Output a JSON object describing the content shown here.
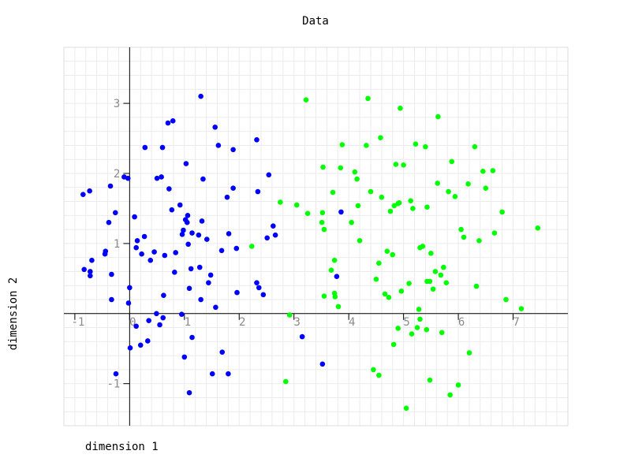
{
  "chart_data": {
    "type": "scatter",
    "title": "Data",
    "xlabel": "dimension 1",
    "ylabel": "dimension 2",
    "xlim": [
      -1.2,
      8.0
    ],
    "ylim": [
      -1.6,
      3.8
    ],
    "grid": true,
    "x_ticks": [
      -1,
      0,
      1,
      2,
      3,
      4,
      5,
      6,
      7
    ],
    "y_ticks": [
      -1,
      1,
      2,
      3
    ],
    "series": [
      {
        "color": "#0000ff",
        "points": [
          [
            -0.85,
            1.7
          ],
          [
            -0.73,
            1.75
          ],
          [
            -0.83,
            0.63
          ],
          [
            -0.72,
            0.6
          ],
          [
            -0.72,
            0.54
          ],
          [
            -0.69,
            0.76
          ],
          [
            -0.45,
            0.85
          ],
          [
            -0.44,
            0.89
          ],
          [
            -0.38,
            1.3
          ],
          [
            -0.35,
            1.82
          ],
          [
            -0.33,
            0.2
          ],
          [
            -0.33,
            0.56
          ],
          [
            -0.26,
            1.44
          ],
          [
            -0.1,
            1.95
          ],
          [
            -0.03,
            1.93
          ],
          [
            -0.02,
            0.15
          ],
          [
            0.0,
            0.37
          ],
          [
            0.01,
            -0.49
          ],
          [
            0.09,
            1.38
          ],
          [
            0.12,
            0.94
          ],
          [
            0.14,
            1.04
          ],
          [
            0.22,
            0.85
          ],
          [
            0.27,
            1.1
          ],
          [
            0.38,
            0.76
          ],
          [
            0.45,
            0.88
          ],
          [
            0.5,
            1.93
          ],
          [
            0.58,
            1.95
          ],
          [
            0.64,
            0.83
          ],
          [
            0.7,
            2.72
          ],
          [
            0.72,
            1.78
          ],
          [
            0.77,
            1.48
          ],
          [
            0.82,
            0.59
          ],
          [
            0.84,
            0.87
          ],
          [
            0.92,
            1.55
          ],
          [
            0.96,
            1.13
          ],
          [
            0.98,
            1.19
          ],
          [
            1.02,
            1.34
          ],
          [
            1.03,
            2.14
          ],
          [
            1.05,
            1.3
          ],
          [
            1.06,
            1.4
          ],
          [
            1.07,
            0.99
          ],
          [
            1.09,
            0.36
          ],
          [
            1.12,
            0.64
          ],
          [
            1.14,
            1.15
          ],
          [
            1.26,
            1.12
          ],
          [
            1.28,
            0.66
          ],
          [
            1.3,
            0.2
          ],
          [
            1.32,
            1.32
          ],
          [
            1.34,
            1.92
          ],
          [
            1.41,
            1.06
          ],
          [
            1.44,
            0.44
          ],
          [
            1.48,
            0.55
          ],
          [
            1.57,
            0.09
          ],
          [
            1.62,
            2.4
          ],
          [
            1.68,
            0.9
          ],
          [
            1.78,
            1.66
          ],
          [
            1.81,
            1.14
          ],
          [
            1.89,
            1.79
          ],
          [
            1.95,
            0.93
          ],
          [
            1.96,
            0.3
          ],
          [
            2.32,
            0.44
          ],
          [
            2.34,
            1.74
          ],
          [
            2.36,
            0.37
          ],
          [
            2.44,
            0.27
          ],
          [
            2.51,
            1.08
          ],
          [
            2.54,
            1.98
          ],
          [
            2.62,
            1.25
          ],
          [
            2.66,
            1.12
          ],
          [
            0.28,
            2.37
          ],
          [
            0.6,
            2.37
          ],
          [
            0.79,
            2.75
          ],
          [
            1.56,
            2.66
          ],
          [
            1.89,
            2.34
          ],
          [
            2.32,
            2.48
          ],
          [
            1.3,
            3.1
          ],
          [
            0.12,
            -0.18
          ],
          [
            0.2,
            -0.45
          ],
          [
            0.33,
            -0.39
          ],
          [
            0.35,
            -0.1
          ],
          [
            0.49,
            0.0
          ],
          [
            0.55,
            -0.16
          ],
          [
            0.61,
            -0.06
          ],
          [
            0.62,
            0.26
          ],
          [
            0.95,
            -0.01
          ],
          [
            1.0,
            -0.62
          ],
          [
            1.09,
            -1.13
          ],
          [
            1.14,
            -0.34
          ],
          [
            1.51,
            -0.86
          ],
          [
            1.69,
            -0.55
          ],
          [
            1.8,
            -0.86
          ],
          [
            3.15,
            -0.33
          ],
          [
            3.52,
            -0.72
          ],
          [
            3.78,
            0.53
          ],
          [
            3.86,
            1.45
          ],
          [
            -0.25,
            -0.86
          ]
        ]
      },
      {
        "color": "#00ff00",
        "points": [
          [
            2.23,
            0.96
          ],
          [
            2.75,
            1.59
          ],
          [
            2.85,
            -0.97
          ],
          [
            2.92,
            -0.02
          ],
          [
            3.05,
            1.55
          ],
          [
            3.22,
            3.05
          ],
          [
            3.25,
            1.43
          ],
          [
            3.51,
            1.3
          ],
          [
            3.52,
            1.44
          ],
          [
            3.53,
            2.09
          ],
          [
            3.55,
            1.2
          ],
          [
            3.55,
            0.25
          ],
          [
            3.68,
            0.62
          ],
          [
            3.71,
            1.73
          ],
          [
            3.74,
            0.29
          ],
          [
            3.74,
            0.76
          ],
          [
            3.75,
            0.24
          ],
          [
            3.81,
            0.1
          ],
          [
            3.85,
            2.08
          ],
          [
            3.88,
            2.41
          ],
          [
            4.05,
            1.3
          ],
          [
            4.11,
            2.02
          ],
          [
            4.15,
            1.92
          ],
          [
            4.17,
            1.54
          ],
          [
            4.2,
            1.04
          ],
          [
            4.32,
            2.4
          ],
          [
            4.35,
            3.07
          ],
          [
            4.4,
            1.74
          ],
          [
            4.5,
            0.49
          ],
          [
            4.55,
            0.72
          ],
          [
            4.58,
            2.51
          ],
          [
            4.6,
            1.66
          ],
          [
            4.66,
            0.28
          ],
          [
            4.7,
            0.89
          ],
          [
            4.73,
            0.23
          ],
          [
            4.76,
            1.46
          ],
          [
            4.8,
            0.84
          ],
          [
            4.83,
            1.54
          ],
          [
            4.86,
            2.13
          ],
          [
            4.9,
            1.57
          ],
          [
            4.92,
            1.58
          ],
          [
            4.94,
            2.93
          ],
          [
            4.96,
            0.32
          ],
          [
            5.0,
            2.12
          ],
          [
            5.1,
            0.43
          ],
          [
            5.13,
            1.61
          ],
          [
            5.17,
            1.5
          ],
          [
            5.22,
            2.42
          ],
          [
            5.28,
            0.06
          ],
          [
            5.3,
            0.94
          ],
          [
            5.35,
            0.96
          ],
          [
            5.4,
            2.38
          ],
          [
            5.43,
            0.46
          ],
          [
            5.48,
            0.46
          ],
          [
            5.5,
            0.86
          ],
          [
            5.54,
            0.35
          ],
          [
            5.58,
            0.6
          ],
          [
            5.62,
            1.86
          ],
          [
            5.68,
            0.55
          ],
          [
            5.73,
            0.66
          ],
          [
            5.78,
            0.44
          ],
          [
            5.82,
            1.74
          ],
          [
            5.88,
            2.17
          ],
          [
            5.94,
            1.67
          ],
          [
            6.05,
            1.2
          ],
          [
            6.1,
            1.09
          ],
          [
            6.18,
            1.85
          ],
          [
            6.3,
            2.38
          ],
          [
            6.33,
            0.39
          ],
          [
            6.38,
            1.04
          ],
          [
            6.45,
            2.03
          ],
          [
            6.5,
            1.79
          ],
          [
            6.63,
            2.04
          ],
          [
            6.66,
            1.15
          ],
          [
            6.8,
            1.45
          ],
          [
            6.87,
            0.2
          ],
          [
            7.15,
            0.07
          ],
          [
            7.45,
            1.22
          ],
          [
            4.45,
            -0.8
          ],
          [
            4.55,
            -0.88
          ],
          [
            4.82,
            -0.44
          ],
          [
            4.9,
            -0.21
          ],
          [
            5.05,
            -1.35
          ],
          [
            5.15,
            -0.29
          ],
          [
            5.25,
            -0.2
          ],
          [
            5.3,
            -0.08
          ],
          [
            5.42,
            -0.23
          ],
          [
            5.48,
            -0.95
          ],
          [
            5.7,
            -0.27
          ],
          [
            5.85,
            -1.16
          ],
          [
            6.0,
            -1.02
          ],
          [
            6.2,
            -0.56
          ],
          [
            5.63,
            2.81
          ],
          [
            5.43,
            1.52
          ]
        ]
      }
    ]
  }
}
